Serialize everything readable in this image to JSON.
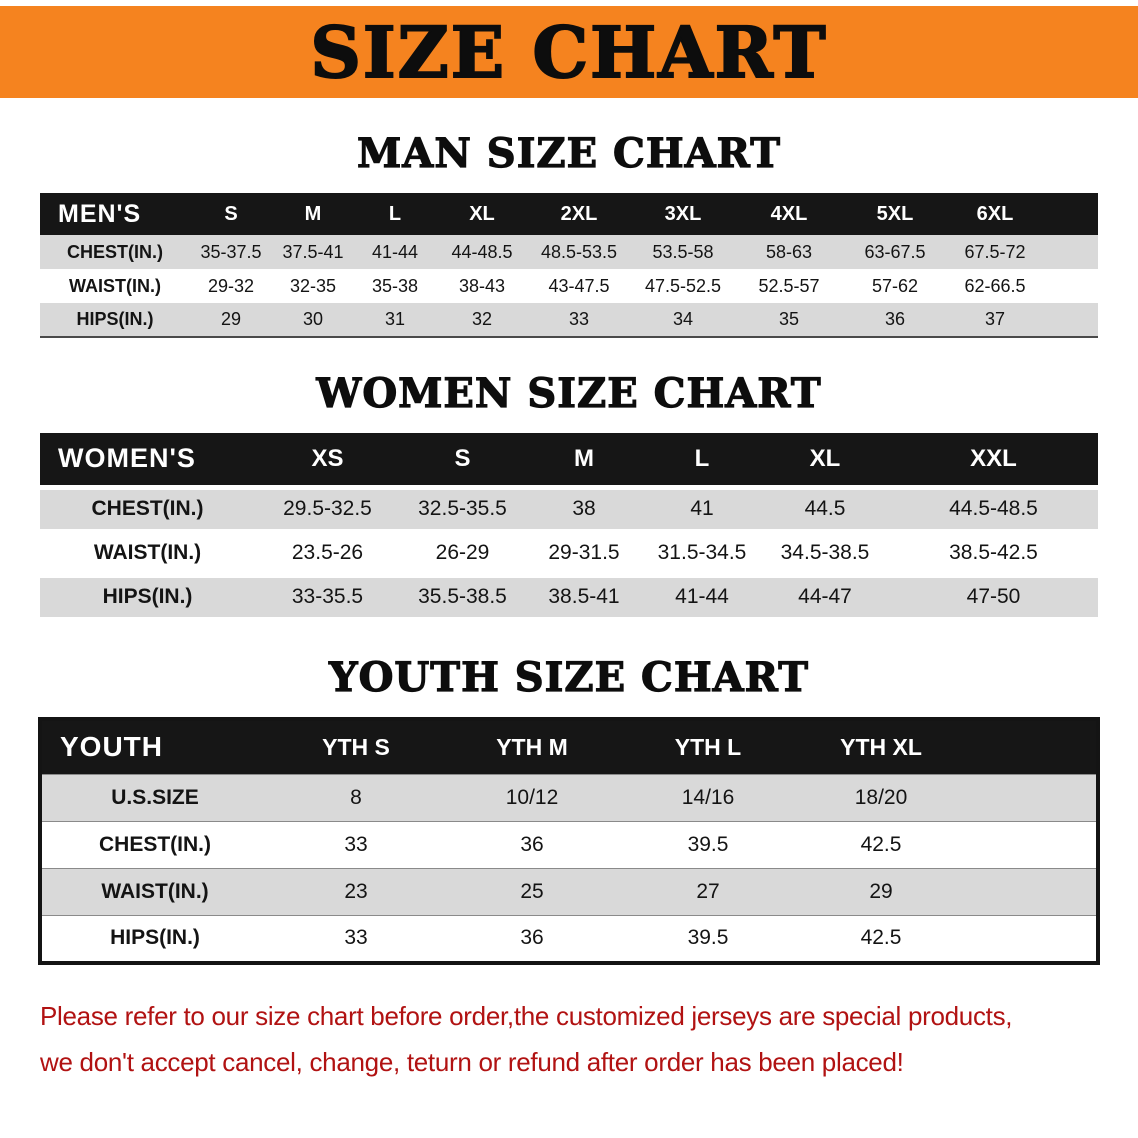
{
  "banner": {
    "title": "SIZE CHART"
  },
  "colors": {
    "banner_bg": "#F5831F",
    "table_header_bg": "#161616",
    "row_gray": "#D9D9D9",
    "footer_red": "#B11212"
  },
  "sections": {
    "men": {
      "heading": "MAN SIZE CHART",
      "table": {
        "header": [
          "MEN'S",
          "S",
          "M",
          "L",
          "XL",
          "2XL",
          "3XL",
          "4XL",
          "5XL",
          "6XL"
        ],
        "rows": [
          [
            "CHEST(IN.)",
            "35-37.5",
            "37.5-41",
            "41-44",
            "44-48.5",
            "48.5-53.5",
            "53.5-58",
            "58-63",
            "63-67.5",
            "67.5-72"
          ],
          [
            "WAIST(IN.)",
            "29-32",
            "32-35",
            "35-38",
            "38-43",
            "43-47.5",
            "47.5-52.5",
            "52.5-57",
            "57-62",
            "62-66.5"
          ],
          [
            "HIPS(IN.)",
            "29",
            "30",
            "31",
            "32",
            "33",
            "34",
            "35",
            "36",
            "37"
          ]
        ]
      }
    },
    "women": {
      "heading": "WOMEN SIZE CHART",
      "table": {
        "header": [
          "WOMEN'S",
          "XS",
          "S",
          "M",
          "L",
          "XL",
          "XXL"
        ],
        "rows": [
          [
            "CHEST(IN.)",
            "29.5-32.5",
            "32.5-35.5",
            "38",
            "41",
            "44.5",
            "44.5-48.5"
          ],
          [
            "WAIST(IN.)",
            "23.5-26",
            "26-29",
            "29-31.5",
            "31.5-34.5",
            "34.5-38.5",
            "38.5-42.5"
          ],
          [
            "HIPS(IN.)",
            "33-35.5",
            "35.5-38.5",
            "38.5-41",
            "41-44",
            "44-47",
            "47-50"
          ]
        ]
      }
    },
    "youth": {
      "heading": "YOUTH SIZE CHART",
      "table": {
        "header": [
          "YOUTH",
          "YTH S",
          "YTH M",
          "YTH L",
          "YTH XL"
        ],
        "rows": [
          [
            "U.S.SIZE",
            "8",
            "10/12",
            "14/16",
            "18/20"
          ],
          [
            "CHEST(IN.)",
            "33",
            "36",
            "39.5",
            "42.5"
          ],
          [
            "WAIST(IN.)",
            "23",
            "25",
            "27",
            "29"
          ],
          [
            "HIPS(IN.)",
            "33",
            "36",
            "39.5",
            "42.5"
          ]
        ]
      }
    }
  },
  "footer": {
    "line1": "Please refer to our size chart before order,the customized jerseys are special products,",
    "line2": "we don't accept cancel, change, teturn or refund after order has been placed!"
  }
}
